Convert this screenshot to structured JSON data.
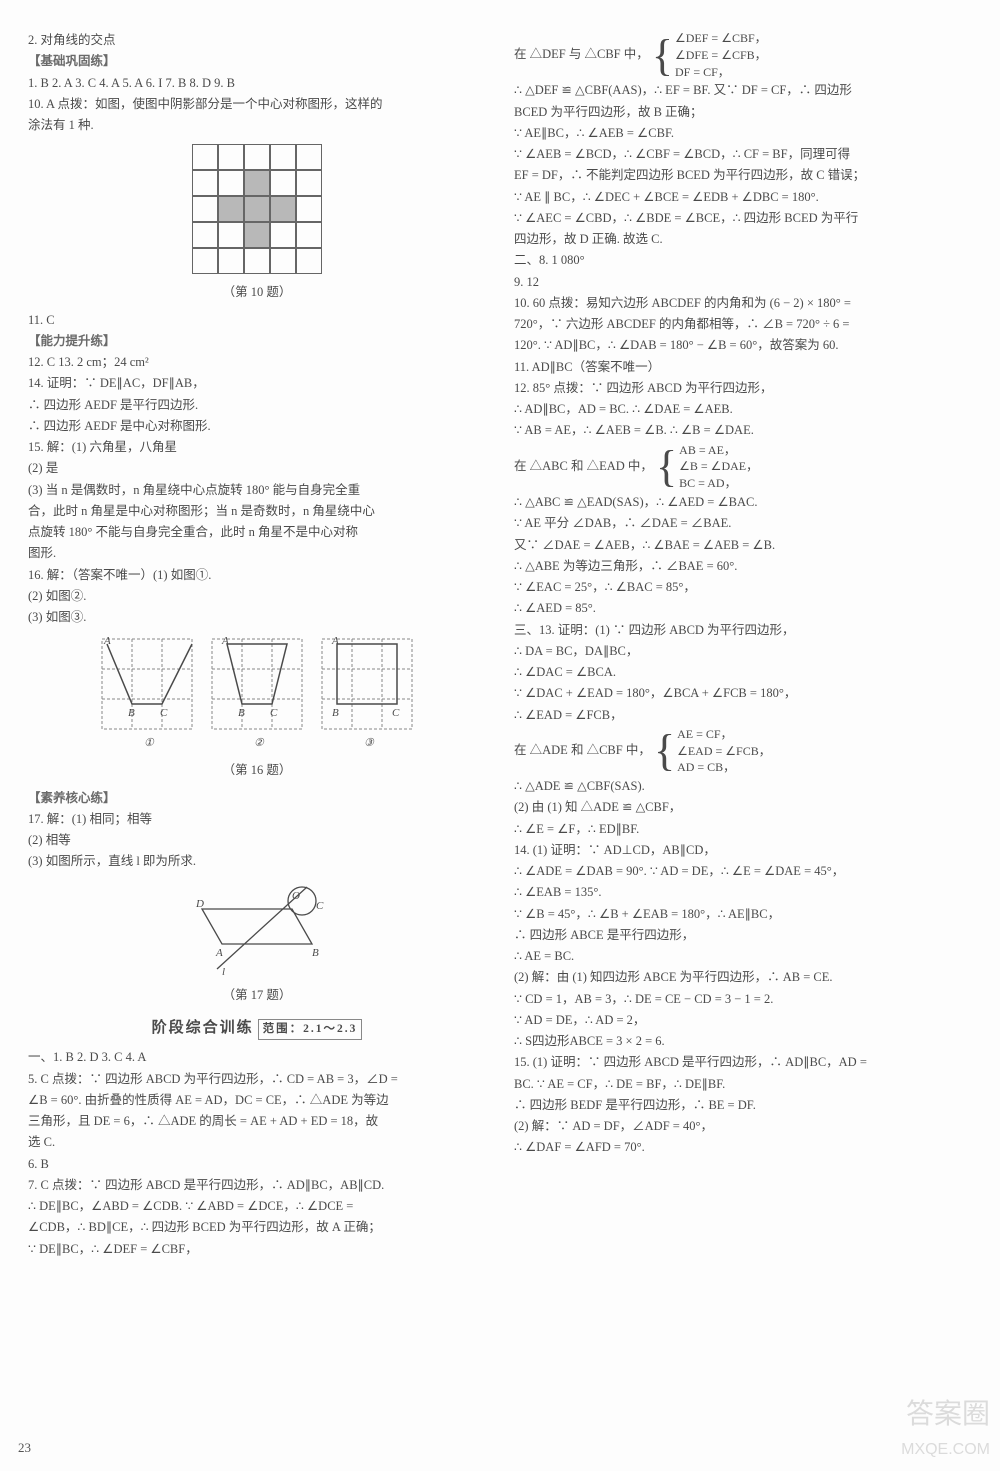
{
  "page_number": "23",
  "watermark_top": "答案圈",
  "watermark_bottom": "MXQE.COM",
  "left": {
    "l1": "2. 对角线的交点",
    "sec1": "【基础巩固练】",
    "ans_row": "1. B  2. A  3. C  4. A  5. A  6. I  7. B  8. D  9. B",
    "l10a": "10. A  点拨：如图，使图中阴影部分是一个中心对称图形，这样的",
    "l10b": "涂法有 1 种.",
    "fig10": "（第 10 题）",
    "l11": "11. C",
    "sec2": "【能力提升练】",
    "l12": "12. C  13. 2 cm；24 cm²",
    "l14a": "14. 证明：∵ DE∥AC，DF∥AB，",
    "l14b": "∴ 四边形 AEDF 是平行四边形.",
    "l14c": "∴ 四边形 AEDF 是中心对称图形.",
    "l15a": "15. 解：(1) 六角星，八角星",
    "l15b": "(2) 是",
    "l15c": "(3) 当 n 是偶数时，n 角星绕中心点旋转 180° 能与自身完全重",
    "l15d": "合，此时 n 角星是中心对称图形；当 n 是奇数时，n 角星绕中心",
    "l15e": "点旋转 180° 不能与自身完全重合，此时 n 角星不是中心对称",
    "l15f": "图形.",
    "l16a": "16. 解：（答案不唯一）(1) 如图①.",
    "l16b": "(2) 如图②.",
    "l16c": "(3) 如图③.",
    "fig16": "（第 16 题）",
    "sec3": "【素养核心练】",
    "l17a": "17. 解：(1) 相同；相等",
    "l17b": "(2) 相等",
    "l17c": "(3) 如图所示，直线 l 即为所求.",
    "fig17": "（第 17 题）",
    "heading": "阶段综合训练",
    "range": "范围：2.1～2.3",
    "part1": "一、1. B  2. D  3. C  4. A",
    "l5a": "5. C  点拨：∵ 四边形 ABCD 为平行四边形，∴ CD = AB = 3，∠D =",
    "l5b": "∠B = 60°. 由折叠的性质得 AE = AD，DC = CE，∴ △ADE 为等边",
    "l5c": "三角形，且 DE = 6，∴ △ADE 的周长 = AE + AD + ED = 18，故",
    "l5d": "选 C.",
    "l6": "6. B",
    "l7a": "7. C  点拨：∵ 四边形 ABCD 是平行四边形，∴ AD∥BC，AB∥CD.",
    "l7b": "∴ DE∥BC，∠ABD = ∠CDB. ∵ ∠ABD = ∠DCE，∴ ∠DCE =",
    "l7c": "∠CDB，∴ BD∥CE，∴ 四边形 BCED 为平行四边形，故 A 正确；",
    "l7d": "∵ DE∥BC，∴ ∠DEF = ∠CBF，"
  },
  "right": {
    "r1_pre": "在 △DEF 与 △CBF 中，",
    "r1_b1": "∠DEF = ∠CBF，",
    "r1_b2": "∠DFE = ∠CFB，",
    "r1_b3": "DF = CF，",
    "r2": "∴ △DEF ≌ △CBF(AAS)，∴ EF = BF. 又∵ DF = CF，∴ 四边形",
    "r3": "BCED 为平行四边形，故 B 正确；",
    "r4": "∵ AE∥BC，∴ ∠AEB = ∠CBF.",
    "r5": "∵ ∠AEB = ∠BCD，∴ ∠CBF = ∠BCD，∴ CF = BF，同理可得",
    "r6": "EF = DF，∴ 不能判定四边形 BCED 为平行四边形，故 C 错误；",
    "r7": "∵ AE ∥ BC，∴ ∠DEC + ∠BCE = ∠EDB + ∠DBC = 180°.",
    "r8": "∵ ∠AEC = ∠CBD，∴ ∠BDE = ∠BCE，∴ 四边形 BCED 为平行",
    "r9": "四边形，故 D 正确. 故选 C.",
    "part2": "二、8. 1 080°",
    "r9b": "9. 12",
    "r10a": "10. 60  点拨：易知六边形 ABCDEF 的内角和为 (6 − 2) × 180° =",
    "r10b": "720°，∵ 六边形 ABCDEF 的内角都相等，∴ ∠B = 720° ÷ 6 =",
    "r10c": "120°. ∵ AD∥BC，∴ ∠DAB = 180° − ∠B = 60°，故答案为 60.",
    "r11": "11. AD∥BC（答案不唯一）",
    "r12a": "12. 85°  点拨：∵ 四边形 ABCD 为平行四边形，",
    "r12b": "∴ AD∥BC，AD = BC. ∴ ∠DAE = ∠AEB.",
    "r12c": "∵ AB = AE，∴ ∠AEB = ∠B. ∴ ∠B = ∠DAE.",
    "r12d_pre": "在 △ABC 和 △EAD 中，",
    "r12d_b1": "AB = AE，",
    "r12d_b2": "∠B = ∠DAE，",
    "r12d_b3": "BC = AD，",
    "r12e": "∴ △ABC ≌ △EAD(SAS)，∴ ∠AED = ∠BAC.",
    "r12f": "∵ AE 平分 ∠DAB，∴ ∠DAE = ∠BAE.",
    "r12g": "又∵ ∠DAE = ∠AEB，∴ ∠BAE = ∠AEB = ∠B.",
    "r12h": "∴ △ABE 为等边三角形，∴ ∠BAE = 60°.",
    "r12i": "∵ ∠EAC = 25°，∴ ∠BAC = 85°，",
    "r12j": "∴ ∠AED = 85°.",
    "part3": "三、13. 证明：(1) ∵ 四边形 ABCD 为平行四边形，",
    "r13b": "∴ DA = BC，DA∥BC，",
    "r13c": "∴ ∠DAC = ∠BCA.",
    "r13d": "∵ ∠DAC + ∠EAD = 180°，∠BCA + ∠FCB = 180°，",
    "r13e": "∴ ∠EAD = ∠FCB，",
    "r13f_pre": "在 △ADE 和 △CBF 中，",
    "r13f_b1": "AE = CF，",
    "r13f_b2": "∠EAD = ∠FCB，",
    "r13f_b3": "AD = CB，",
    "r13g": "∴ △ADE ≌ △CBF(SAS).",
    "r13h": "(2) 由 (1) 知 △ADE ≌ △CBF，",
    "r13i": "∴ ∠E = ∠F，∴ ED∥BF.",
    "r14a": "14. (1) 证明：∵ AD⊥CD，AB∥CD，",
    "r14b": "∴ ∠ADE = ∠DAB = 90°. ∵ AD = DE，∴ ∠E = ∠DAE = 45°，",
    "r14c": "∴ ∠EAB = 135°.",
    "r14d": "∵ ∠B = 45°，∴ ∠B + ∠EAB = 180°，∴ AE∥BC，",
    "r14e": "∴ 四边形 ABCE 是平行四边形，",
    "r14f": "∴ AE = BC.",
    "r14g": "(2) 解：由 (1) 知四边形 ABCE 为平行四边形，∴ AB = CE.",
    "r14h": "∵ CD = 1，AB = 3，∴ DE = CE − CD = 3 − 1 = 2.",
    "r14i": "∵ AD = DE，∴ AD = 2，",
    "r14j": "∴ S四边形ABCE = 3 × 2 = 6.",
    "r15a": "15. (1) 证明：∵ 四边形 ABCD 是平行四边形，∴ AD∥BC，AD =",
    "r15b": "BC. ∵ AE = CF，∴ DE = BF，∴ DE∥BF.",
    "r15c": "∴ 四边形 BEDF 是平行四边形，∴ BE = DF.",
    "r15d": "(2) 解：∵ AD = DF，∠ADF = 40°，",
    "r15e": "∴ ∠DAF = ∠AFD = 70°."
  },
  "grid_pattern": [
    [
      0,
      0,
      0,
      0,
      0
    ],
    [
      0,
      0,
      1,
      0,
      0
    ],
    [
      0,
      1,
      1,
      1,
      0
    ],
    [
      0,
      0,
      1,
      0,
      0
    ],
    [
      0,
      0,
      0,
      0,
      0
    ]
  ],
  "colors": {
    "text": "#4a4a4a",
    "grid_border": "#666666",
    "grid_fill": "#b8b8b8",
    "svg_stroke": "#5a5a5a",
    "svg_dash": "#888888",
    "bg": "#fdfdfd"
  }
}
